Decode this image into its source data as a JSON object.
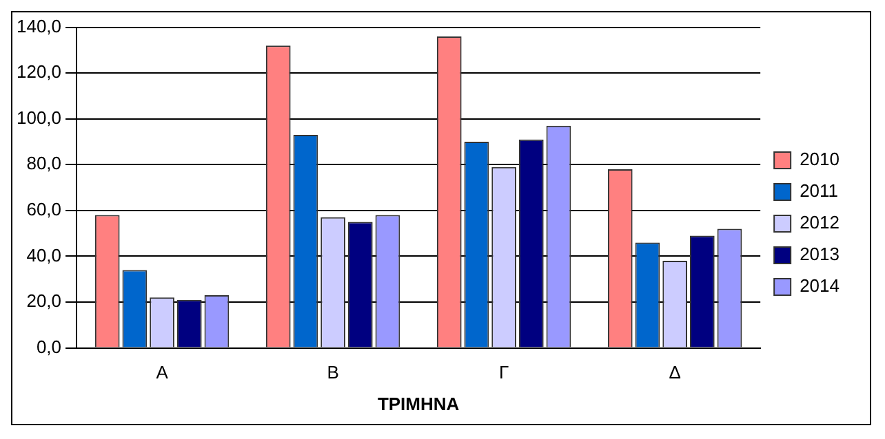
{
  "chart_data": {
    "type": "bar",
    "xlabel": "ΤΡΙΜΗΝΑ",
    "categories": [
      "Α",
      "Β",
      "Γ",
      "Δ"
    ],
    "series": [
      {
        "name": "2010",
        "color": "#ff8080",
        "values": [
          58,
          132,
          136,
          78
        ]
      },
      {
        "name": "2011",
        "color": "#0066cc",
        "values": [
          34,
          93,
          90,
          46
        ]
      },
      {
        "name": "2012",
        "color": "#ccccff",
        "values": [
          22,
          57,
          79,
          38
        ]
      },
      {
        "name": "2013",
        "color": "#000080",
        "values": [
          21,
          55,
          91,
          49
        ]
      },
      {
        "name": "2014",
        "color": "#9999ff",
        "values": [
          23,
          58,
          97,
          52
        ]
      }
    ],
    "ylim": [
      0,
      140
    ],
    "yticks": [
      {
        "value": 0,
        "label": "0,0"
      },
      {
        "value": 20,
        "label": "20,0"
      },
      {
        "value": 40,
        "label": "40,0"
      },
      {
        "value": 60,
        "label": "60,0"
      },
      {
        "value": 80,
        "label": "80,0"
      },
      {
        "value": 100,
        "label": "100,0"
      },
      {
        "value": 120,
        "label": "120,0"
      },
      {
        "value": 140,
        "label": "140,0"
      }
    ],
    "grid": "y",
    "legend": "right"
  }
}
